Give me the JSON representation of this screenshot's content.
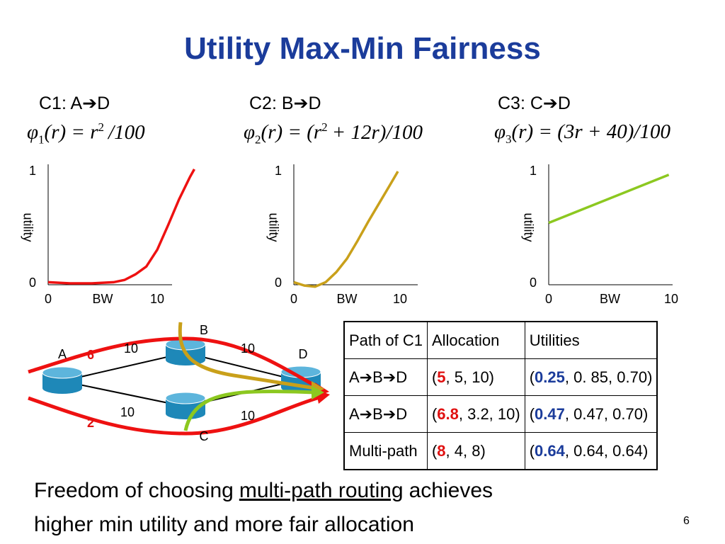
{
  "title": "Utility Max-Min Fairness",
  "flows": [
    "C1: A➔D",
    "C2: B➔D",
    "C3: C➔D"
  ],
  "formulas": [
    [
      "φ",
      "1",
      "(r) = r",
      "2",
      "/100"
    ],
    [
      "φ",
      "2",
      "(r) = (r",
      "2",
      "+ 12r)/100"
    ],
    [
      "φ",
      "3",
      "(r) = (3r + 40)/100"
    ]
  ],
  "chart_data": [
    {
      "type": "line",
      "xlim": [
        0,
        13.5
      ],
      "ylim": [
        0,
        1
      ],
      "xticks": [
        0,
        10
      ],
      "yticks": [
        0,
        1
      ],
      "xlabel": "BW",
      "ylabel": "utility",
      "color": "#ee1111",
      "x": [
        0,
        2,
        4,
        6,
        7,
        8,
        9,
        10,
        11,
        12,
        13,
        13.4
      ],
      "values": [
        0.01,
        0,
        0,
        0.01,
        0.03,
        0.08,
        0.15,
        0.3,
        0.52,
        0.75,
        0.95,
        1.02
      ]
    },
    {
      "type": "line",
      "xlim": [
        0,
        12
      ],
      "ylim": [
        0,
        1
      ],
      "xticks": [
        0,
        10
      ],
      "yticks": [
        0,
        1
      ],
      "xlabel": "BW",
      "ylabel": "utility",
      "color": "#c9a01a",
      "x": [
        0,
        1,
        2,
        3,
        4,
        5,
        6,
        7,
        8,
        9,
        9.8
      ],
      "values": [
        0.01,
        -0.02,
        -0.03,
        0.01,
        0.1,
        0.22,
        0.38,
        0.55,
        0.71,
        0.87,
        1.0
      ]
    },
    {
      "type": "line",
      "xlim": [
        0,
        10.4
      ],
      "ylim": [
        0,
        1
      ],
      "xticks": [
        0,
        10
      ],
      "yticks": [
        0,
        1
      ],
      "xlabel": "BW",
      "ylabel": "utility",
      "color": "#8cc820",
      "x": [
        0,
        9.8
      ],
      "values": [
        0.54,
        0.97
      ]
    }
  ],
  "network": {
    "nodes": [
      "A",
      "B",
      "C",
      "D"
    ],
    "edges": [
      "10",
      "10",
      "10",
      "10"
    ],
    "flows": [
      "6",
      "2"
    ]
  },
  "table": {
    "header": [
      "Path of C1",
      "Allocation",
      "Utilities"
    ],
    "rows": [
      [
        [
          "A➔B➔D"
        ],
        [
          "(",
          "5",
          ", 5, 10)"
        ],
        [
          "(",
          "0.25",
          ", 0. 85, 0.70)"
        ]
      ],
      [
        [
          "A➔B➔D"
        ],
        [
          "(",
          "6.8",
          ", 3.2, 10)"
        ],
        [
          "(",
          "0.47",
          ", 0.47, 0.70)"
        ]
      ],
      [
        [
          "Multi-path"
        ],
        [
          "(",
          "8",
          ", 4, 8)"
        ],
        [
          "(",
          "0.64",
          ", 0.64, 0.64)"
        ]
      ]
    ]
  },
  "footer": {
    "line1": [
      "Freedom of choosing",
      "multi-path routing",
      "achieves"
    ],
    "line2": "higher min utility and more fair allocation"
  },
  "page_number": "6"
}
